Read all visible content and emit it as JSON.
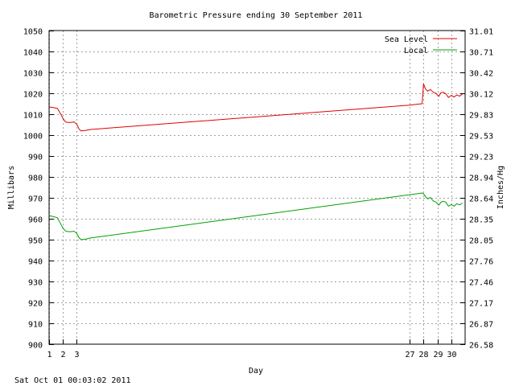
{
  "chart_data": {
    "type": "line",
    "title": "Barometric Pressure ending 30 September 2011",
    "xlabel": "Day",
    "ylabel_left": "Millibars",
    "ylabel_right": "Inches/Hg",
    "footer": "Sat Oct 01 00:03:02 2011",
    "xlim": [
      1,
      31
    ],
    "ylim": [
      900,
      1050
    ],
    "ylim_right": [
      26.58,
      31.01
    ],
    "grid": true,
    "legend_position": "top-right",
    "x_ticks": [
      1,
      2,
      3,
      27,
      28,
      29,
      30
    ],
    "x_tick_labels": [
      "1",
      "2",
      "3",
      "27",
      "28",
      "29",
      "30"
    ],
    "y_ticks": [
      900,
      910,
      920,
      930,
      940,
      950,
      960,
      970,
      980,
      990,
      1000,
      1010,
      1020,
      1030,
      1040,
      1050
    ],
    "y_tick_labels": [
      "900",
      "910",
      "920",
      "930",
      "940",
      "950",
      "960",
      "970",
      "980",
      "990",
      "1000",
      "1010",
      "1020",
      "1030",
      "1040",
      "1050"
    ],
    "y2_tick_labels": [
      "26.58",
      "26.87",
      "27.17",
      "27.46",
      "27.76",
      "28.05",
      "28.35",
      "28.64",
      "28.94",
      "29.23",
      "29.53",
      "29.83",
      "30.12",
      "30.42",
      "30.71",
      "31.01"
    ],
    "series": [
      {
        "name": "Sea Level",
        "color": "#e00000",
        "points": [
          [
            1.0,
            1013.5
          ],
          [
            1.3,
            1013.2
          ],
          [
            1.6,
            1012.8
          ],
          [
            1.8,
            1010.5
          ],
          [
            2.0,
            1008.0
          ],
          [
            2.2,
            1006.2
          ],
          [
            2.5,
            1006.0
          ],
          [
            2.8,
            1006.3
          ],
          [
            3.0,
            1005.2
          ],
          [
            3.15,
            1003.0
          ],
          [
            3.3,
            1002.0
          ],
          [
            3.6,
            1002.2
          ],
          [
            4.0,
            1002.7
          ],
          [
            27.0,
            1014.3
          ],
          [
            27.6,
            1014.8
          ],
          [
            27.9,
            1015.0
          ],
          [
            28.0,
            1024.5
          ],
          [
            28.15,
            1022.0
          ],
          [
            28.3,
            1021.0
          ],
          [
            28.5,
            1021.8
          ],
          [
            28.7,
            1020.5
          ],
          [
            28.9,
            1020.0
          ],
          [
            29.1,
            1018.5
          ],
          [
            29.25,
            1020.2
          ],
          [
            29.4,
            1020.5
          ],
          [
            29.6,
            1019.8
          ],
          [
            29.8,
            1018.0
          ],
          [
            30.0,
            1019.0
          ],
          [
            30.2,
            1018.2
          ],
          [
            30.4,
            1019.2
          ],
          [
            30.6,
            1018.6
          ],
          [
            30.8,
            1019.6
          ]
        ]
      },
      {
        "name": "Local",
        "color": "#00a000",
        "points": [
          [
            1.0,
            961.5
          ],
          [
            1.3,
            961.0
          ],
          [
            1.6,
            960.5
          ],
          [
            1.8,
            958.0
          ],
          [
            2.0,
            955.5
          ],
          [
            2.2,
            954.0
          ],
          [
            2.5,
            953.8
          ],
          [
            2.8,
            954.0
          ],
          [
            3.0,
            953.0
          ],
          [
            3.15,
            951.0
          ],
          [
            3.3,
            950.0
          ],
          [
            3.6,
            950.2
          ],
          [
            4.0,
            950.8
          ],
          [
            27.0,
            971.5
          ],
          [
            27.6,
            972.0
          ],
          [
            27.9,
            972.3
          ],
          [
            28.0,
            972.0
          ],
          [
            28.15,
            970.5
          ],
          [
            28.3,
            969.5
          ],
          [
            28.5,
            970.2
          ],
          [
            28.7,
            968.5
          ],
          [
            28.9,
            968.0
          ],
          [
            29.1,
            966.5
          ],
          [
            29.25,
            967.8
          ],
          [
            29.4,
            968.3
          ],
          [
            29.6,
            968.0
          ],
          [
            29.8,
            966.0
          ],
          [
            30.0,
            966.8
          ],
          [
            30.2,
            966.0
          ],
          [
            30.4,
            967.2
          ],
          [
            30.6,
            966.6
          ],
          [
            30.8,
            967.5
          ]
        ]
      }
    ]
  }
}
